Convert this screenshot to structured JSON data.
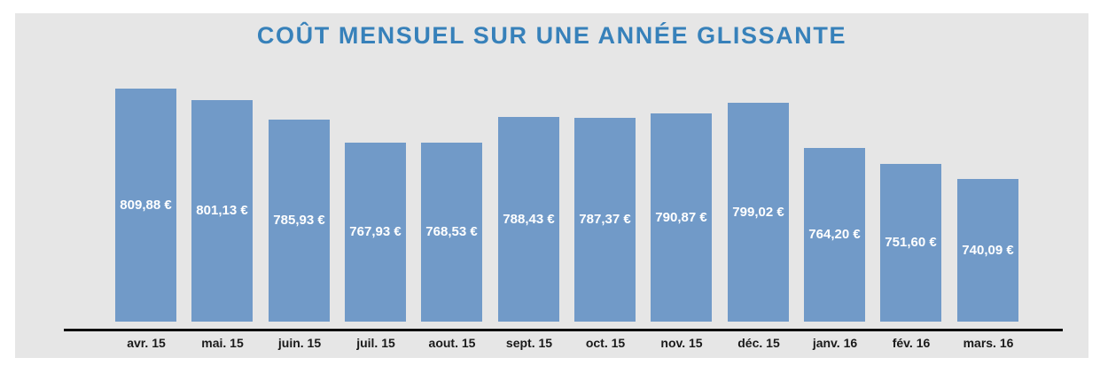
{
  "page": {
    "background": "#ffffff",
    "panel_background": "#e6e6e6"
  },
  "chart_data": {
    "type": "bar",
    "title": "COÛT MENSUEL SUR UNE ANNÉE GLISSANTE",
    "categories": [
      "avr. 15",
      "mai. 15",
      "juin. 15",
      "juil. 15",
      "aout. 15",
      "sept. 15",
      "oct. 15",
      "nov. 15",
      "déc. 15",
      "janv. 16",
      "fév. 16",
      "mars. 16"
    ],
    "values": [
      809.88,
      801.13,
      785.93,
      767.93,
      768.53,
      788.43,
      787.37,
      790.87,
      799.02,
      764.2,
      751.6,
      740.09
    ],
    "value_labels": [
      "809,88 €",
      "801,13 €",
      "785,93 €",
      "767,93 €",
      "768,53 €",
      "788,43 €",
      "787,37 €",
      "790,87 €",
      "799,02 €",
      "764,20 €",
      "751,60 €",
      "740,09 €"
    ],
    "xlabel": "",
    "ylabel": "",
    "ylim": [
      630,
      810
    ],
    "grid": false,
    "legend_position": "none",
    "data_label_position": "center",
    "colors": {
      "bar": "#719ac8",
      "title": "#3781ba",
      "data_label": "#ffffff",
      "axis_line": "#0d0d0d",
      "tick_label": "#1a1a1a"
    }
  }
}
